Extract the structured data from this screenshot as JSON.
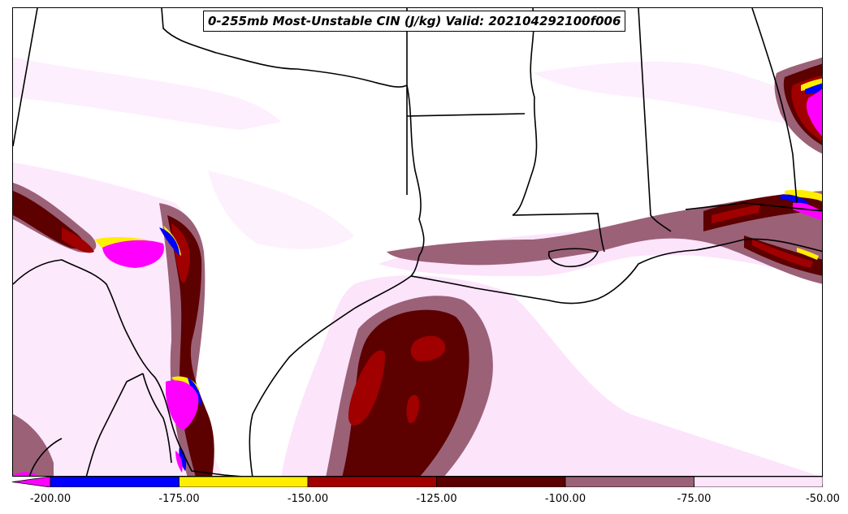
{
  "title": "0-255mb Most-Unstable CIN (J/kg) Valid: 202104292100f006",
  "colorbar": {
    "bins": [
      {
        "min": -225,
        "max": -200,
        "color": "#ff00ff"
      },
      {
        "min": -200,
        "max": -175,
        "color": "#0000ff"
      },
      {
        "min": -175,
        "max": -150,
        "color": "#ffee00"
      },
      {
        "min": -150,
        "max": -125,
        "color": "#a10000"
      },
      {
        "min": -125,
        "max": -100,
        "color": "#5c0000"
      },
      {
        "min": -100,
        "max": -75,
        "color": "#9b6177"
      },
      {
        "min": -75,
        "max": -50,
        "color": "#fce4fb"
      }
    ],
    "tick_labels": [
      "-200.00",
      "-175.00",
      "-150.00",
      "-125.00",
      "-100.00",
      "-75.00",
      "-50.00"
    ]
  },
  "colors": {
    "pink": "#fce4fb",
    "mauve": "#9b6177",
    "dark_red": "#5c0000",
    "red": "#a10000",
    "yellow": "#ffee00",
    "blue": "#0000ff",
    "magenta": "#ff00ff",
    "border": "#000000"
  }
}
